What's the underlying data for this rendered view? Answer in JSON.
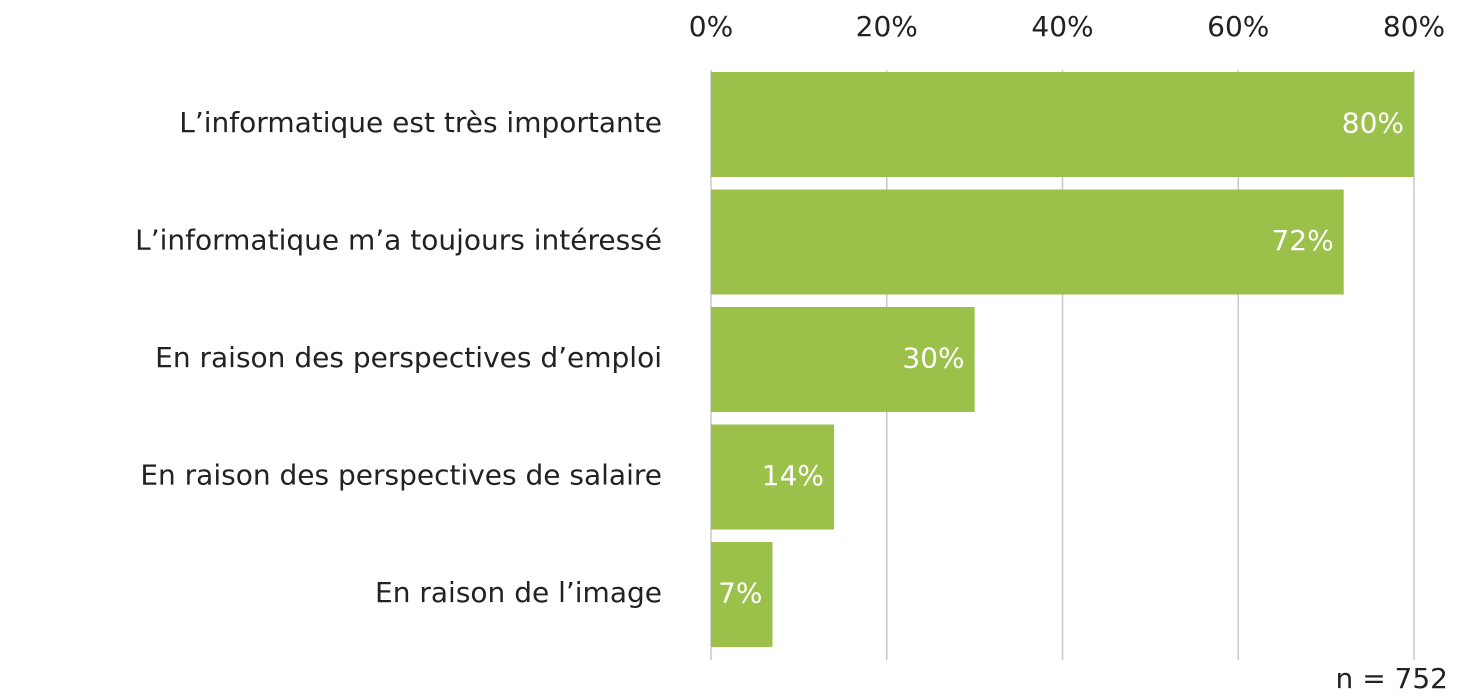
{
  "chart_data": {
    "type": "bar",
    "orientation": "horizontal",
    "categories": [
      "L’informatique est très importante",
      "L’informatique m’a toujours intéressé",
      "En raison des perspectives d’emploi",
      "En raison des perspectives de salaire",
      "En raison de l’image"
    ],
    "values": [
      80,
      72,
      30,
      14,
      7
    ],
    "value_labels": [
      "80%",
      "72%",
      "30%",
      "14%",
      "7%"
    ],
    "color": "#9bc14b",
    "xlim": [
      0,
      80
    ],
    "xticks": [
      {
        "value": 0,
        "label": "0%"
      },
      {
        "value": 20,
        "label": "20%"
      },
      {
        "value": 40,
        "label": "40%"
      },
      {
        "value": 60,
        "label": "60%"
      },
      {
        "value": 80,
        "label": "80%"
      }
    ],
    "grid": true,
    "annotation": "n = 752"
  }
}
